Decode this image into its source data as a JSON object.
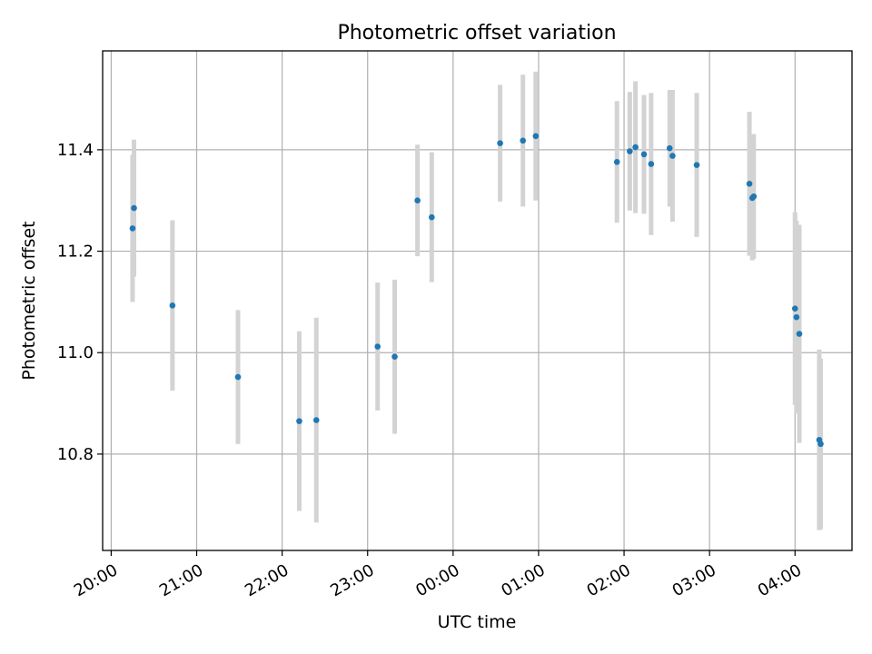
{
  "chart_data": {
    "type": "scatter",
    "title": "Photometric offset variation",
    "xlabel": "UTC time",
    "ylabel": "Photometric offset",
    "x_ticks": [
      "20:00",
      "21:00",
      "22:00",
      "23:00",
      "00:00",
      "01:00",
      "02:00",
      "03:00",
      "04:00"
    ],
    "y_ticks": [
      "10.8",
      "11.0",
      "11.2",
      "11.4"
    ],
    "y_tick_values": [
      10.8,
      11.0,
      11.2,
      11.4
    ],
    "x_range": [
      "19:54",
      "04:40"
    ],
    "ylim": [
      10.61,
      11.595
    ],
    "grid": true,
    "colors": {
      "points": "#1f77b4",
      "errorbars": "#d3d3d3",
      "grid": "#b0b0b0"
    },
    "series": [
      {
        "x": [
          "20:15",
          "20:16",
          "20:43",
          "21:29",
          "22:12",
          "22:24",
          "23:07",
          "23:19",
          "23:35",
          "23:45",
          "00:33",
          "00:49",
          "00:58",
          "01:55",
          "02:04",
          "02:08",
          "02:14",
          "02:19",
          "02:32",
          "02:34",
          "02:51",
          "03:28",
          "03:30",
          "03:31",
          "04:00",
          "04:01",
          "04:03",
          "04:17",
          "04:18"
        ],
        "y": [
          11.245,
          11.285,
          11.093,
          10.952,
          10.865,
          10.867,
          11.012,
          10.992,
          11.3,
          11.267,
          11.413,
          11.418,
          11.427,
          11.376,
          11.397,
          11.405,
          11.391,
          11.372,
          11.403,
          11.388,
          11.37,
          11.333,
          11.305,
          11.308,
          11.087,
          11.07,
          11.037,
          10.828,
          10.82
        ],
        "err": [
          0.145,
          0.135,
          0.168,
          0.132,
          0.177,
          0.202,
          0.126,
          0.152,
          0.11,
          0.128,
          0.115,
          0.13,
          0.127,
          0.12,
          0.117,
          0.13,
          0.117,
          0.14,
          0.115,
          0.13,
          0.142,
          0.142,
          0.123,
          0.123,
          0.19,
          0.19,
          0.215,
          0.178,
          0.168
        ]
      }
    ]
  }
}
